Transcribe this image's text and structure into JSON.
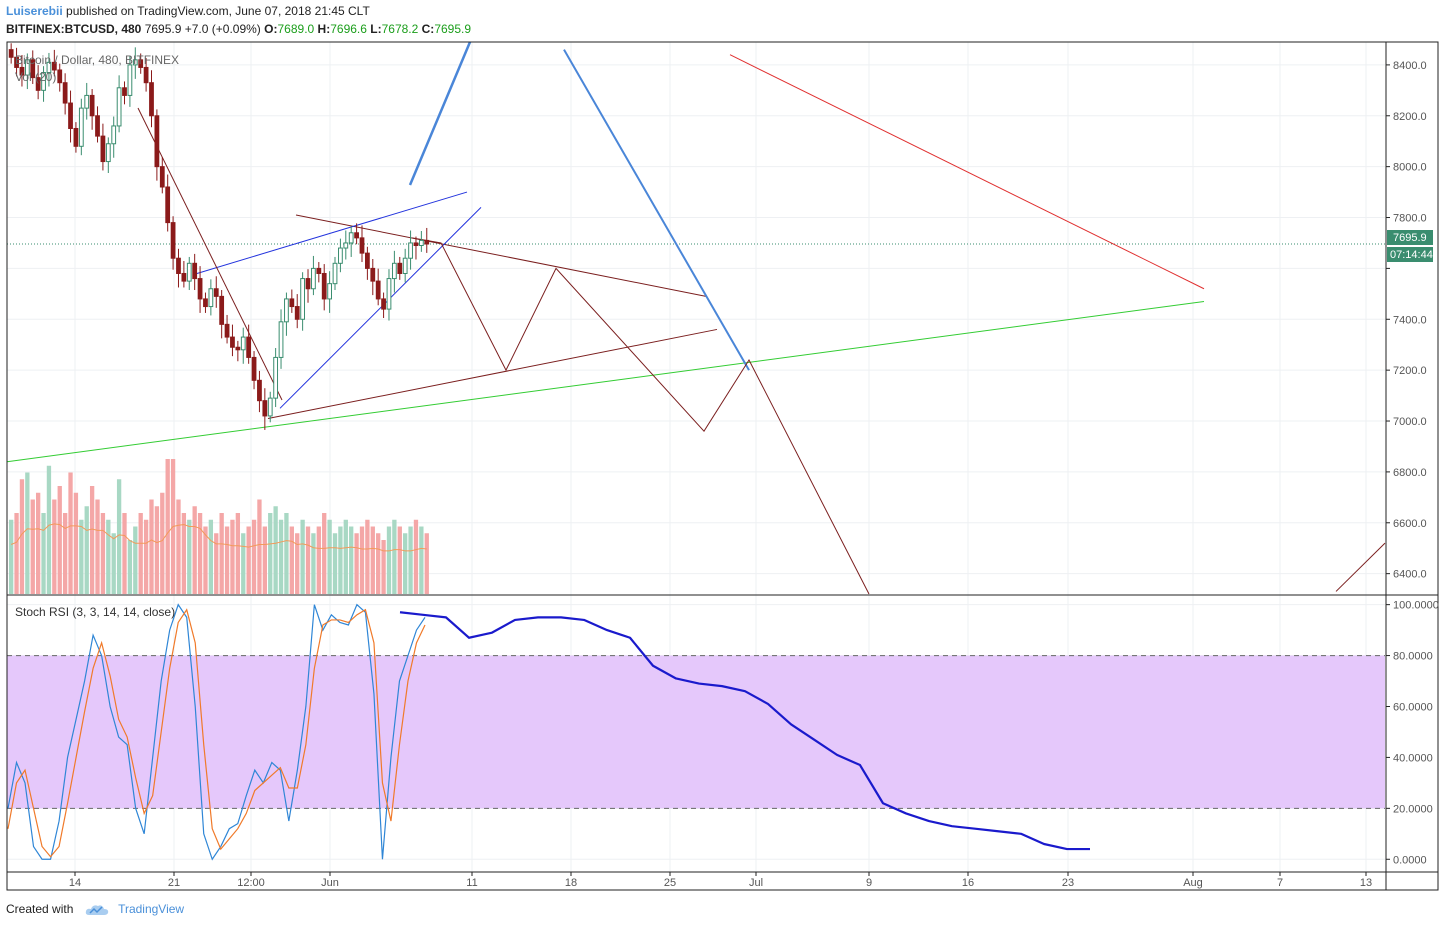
{
  "header": {
    "author": "Luiserebii",
    "published_text": "published on TradingView.com, June 07, 2018 21:45 CLT",
    "symbol": "BITFINEX:BTCUSD, 480",
    "last": "7695.9",
    "change": "+7.0 (+0.09%)",
    "o_label": "O:",
    "o_val": "7689.0",
    "h_label": "H:",
    "h_val": "7696.6",
    "l_label": "L:",
    "l_val": "7678.2",
    "c_label": "C:",
    "c_val": "7695.9"
  },
  "legend": {
    "main": "Bitcoin / Dollar, 480, BITFINEX",
    "volume": "Vol (20)",
    "stoch": "Stoch RSI (3, 3, 14, 14, close)"
  },
  "price_badge": {
    "value": "7695.9",
    "countdown": "07:14:44"
  },
  "footer": {
    "created_with": "Created with",
    "brand": "TradingView"
  },
  "colors": {
    "up": "#3a8d6f",
    "down": "#8b1a1a",
    "vol_up": "#a8d8c4",
    "vol_down": "#f4a7a7",
    "blue_line": "#4a86d8",
    "green_line": "#33cc33",
    "red_line": "#e03030",
    "brown_line": "#7b1f1f",
    "stoch_band": "#e5c8fb",
    "stoch_k": "#2f86d6",
    "stoch_d": "#f07a2a",
    "projection": "#1a1acc",
    "badge": "#3a8d6f"
  },
  "chart_data": [
    {
      "type": "candlestick",
      "title": "Bitcoin / Dollar, 480, BITFINEX",
      "y_ticks": [
        8400,
        8200,
        8000,
        7800,
        7600,
        7400,
        7200,
        7000,
        6800,
        6600,
        6400
      ],
      "y_tick_labels": [
        "8400.0",
        "8200.0",
        "8000.0",
        "7800.0",
        "",
        "7400.0",
        "7200.0",
        "7000.0",
        "6800.0",
        "6600.0",
        "6400.0"
      ],
      "ylim": [
        6320,
        8490
      ],
      "x_tick_labels": [
        "14",
        "21",
        "12:00",
        "Jun",
        "11",
        "18",
        "25",
        "Jul",
        "9",
        "16",
        "23",
        "Aug",
        "7",
        "13"
      ],
      "last_price": 7695.9,
      "candles_close": [
        8430,
        8390,
        8360,
        8420,
        8350,
        8300,
        8370,
        8410,
        8380,
        8330,
        8250,
        8150,
        8080,
        8230,
        8280,
        8200,
        8120,
        8020,
        8090,
        8160,
        8310,
        8280,
        8400,
        8420,
        8390,
        8330,
        8200,
        8000,
        7920,
        7780,
        7640,
        7580,
        7550,
        7620,
        7560,
        7480,
        7450,
        7520,
        7490,
        7380,
        7330,
        7290,
        7280,
        7330,
        7250,
        7160,
        7080,
        7020,
        7090,
        7250,
        7390,
        7480,
        7450,
        7400,
        7560,
        7520,
        7600,
        7580,
        7480,
        7540,
        7620,
        7680,
        7700,
        7740,
        7720,
        7660,
        7600,
        7550,
        7480,
        7440,
        7560,
        7620,
        7580,
        7640,
        7700,
        7690,
        7710,
        7695.9
      ],
      "volume": [
        0.55,
        0.6,
        0.85,
        0.9,
        0.7,
        0.75,
        0.6,
        0.95,
        0.7,
        0.8,
        0.6,
        0.9,
        0.75,
        0.55,
        0.65,
        0.8,
        0.7,
        0.6,
        0.55,
        0.45,
        0.85,
        0.6,
        0.4,
        0.5,
        0.6,
        0.55,
        0.7,
        0.65,
        0.75,
        1.0,
        1.0,
        0.7,
        0.6,
        0.55,
        0.65,
        0.6,
        0.5,
        0.55,
        0.45,
        0.6,
        0.5,
        0.55,
        0.6,
        0.45,
        0.5,
        0.55,
        0.7,
        0.5,
        0.6,
        0.65,
        0.55,
        0.6,
        0.5,
        0.45,
        0.55,
        0.5,
        0.45,
        0.5,
        0.6,
        0.55,
        0.45,
        0.5,
        0.55,
        0.5,
        0.45,
        0.5,
        0.55,
        0.5,
        0.45,
        0.4,
        0.5,
        0.55,
        0.5,
        0.45,
        0.5,
        0.55,
        0.5,
        0.45
      ],
      "trendlines_price": [
        {
          "name": "green-support",
          "from": [
            0.0,
            6840
          ],
          "to": [
            1.0,
            7470
          ]
        },
        {
          "name": "red-resistance",
          "from": [
            0.0,
            8440
          ],
          "to": [
            1.0,
            7520
          ]
        },
        {
          "name": "brown-upper",
          "from": [
            0.0,
            7810
          ],
          "to": [
            1.0,
            7490
          ]
        },
        {
          "name": "brown-lower",
          "from": [
            0.0,
            7010
          ],
          "to": [
            1.0,
            7360
          ]
        },
        {
          "name": "blue-channel-top",
          "from": [
            0.0,
            7580
          ],
          "to": [
            1.0,
            7900
          ]
        },
        {
          "name": "blue-channel-bottom",
          "from": [
            0.0,
            7050
          ],
          "to": [
            1.0,
            7840
          ]
        },
        {
          "name": "blue-drop",
          "from": [
            0.0,
            8460
          ],
          "to": [
            1.0,
            7200
          ]
        }
      ],
      "projection_zigzag_price": [
        7720,
        7700,
        7200,
        7600,
        6960,
        7240,
        6320
      ],
      "projection_tail_price": [
        6330,
        6520
      ]
    },
    {
      "type": "line",
      "title": "Stoch RSI (3, 3, 14, 14, close)",
      "y_ticks": [
        100,
        80,
        60,
        40,
        20,
        0
      ],
      "y_tick_labels": [
        "100.0000",
        "80.0000",
        "60.0000",
        "40.0000",
        "20.0000",
        "0.0000"
      ],
      "ylim": [
        -5,
        103
      ],
      "band": [
        20,
        80
      ],
      "series": [
        {
          "name": "K",
          "values": [
            20,
            38,
            30,
            5,
            0,
            0,
            15,
            40,
            55,
            70,
            88,
            80,
            60,
            48,
            45,
            20,
            10,
            40,
            70,
            90,
            100,
            95,
            60,
            10,
            0,
            5,
            12,
            14,
            25,
            35,
            30,
            38,
            35,
            15,
            35,
            60,
            100,
            90,
            96,
            93,
            92,
            100,
            97,
            65,
            0,
            40,
            70,
            80,
            90,
            95
          ]
        },
        {
          "name": "D",
          "values": [
            12,
            30,
            35,
            20,
            5,
            1,
            5,
            22,
            40,
            58,
            75,
            85,
            72,
            55,
            48,
            32,
            18,
            25,
            50,
            75,
            93,
            98,
            85,
            45,
            12,
            4,
            8,
            12,
            18,
            27,
            30,
            33,
            36,
            28,
            28,
            45,
            75,
            92,
            94,
            94,
            93,
            96,
            98,
            85,
            30,
            15,
            45,
            70,
            85,
            92
          ]
        }
      ],
      "projection": [
        97,
        96,
        95,
        87,
        89,
        94,
        95,
        95,
        94,
        90,
        87,
        76,
        71,
        69,
        68,
        66,
        61,
        53,
        47,
        41,
        37,
        22,
        18,
        15,
        13,
        12,
        11,
        10,
        6,
        4,
        4
      ]
    }
  ]
}
